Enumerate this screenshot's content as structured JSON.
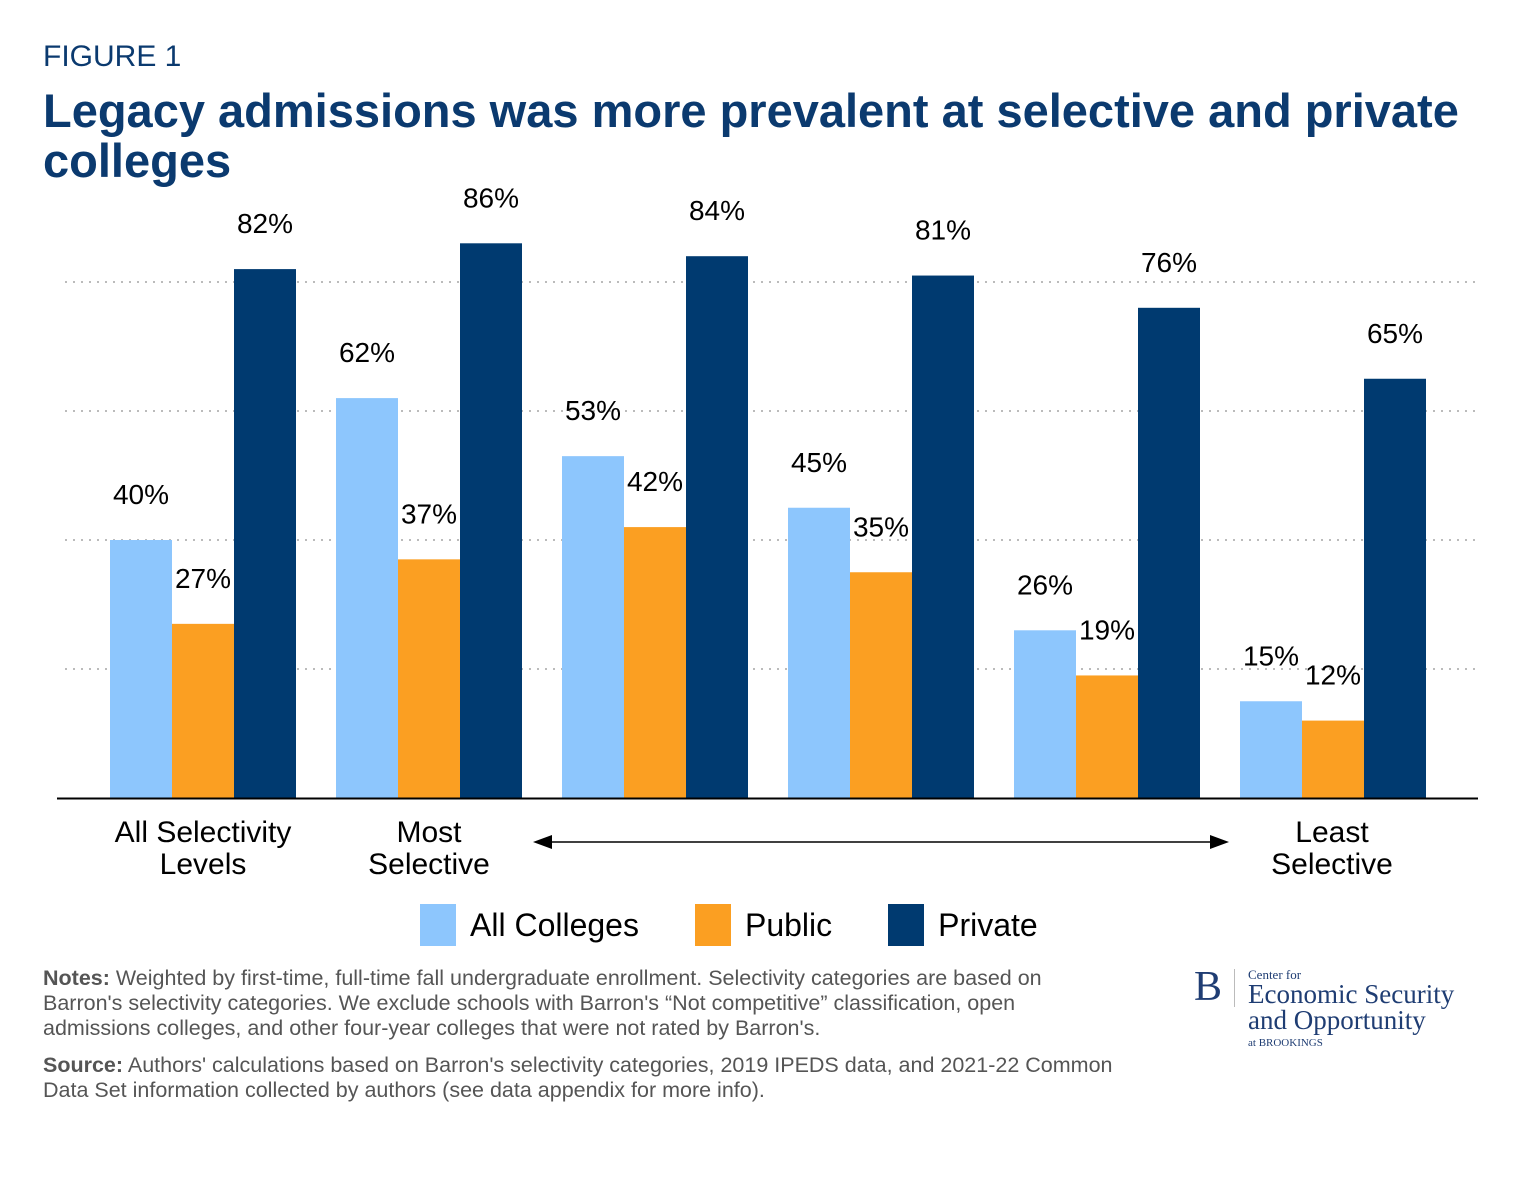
{
  "figure_label": "FIGURE 1",
  "title": "Legacy admissions was more prevalent at selective and private colleges",
  "chart_data": {
    "type": "bar",
    "categories": [
      "All Selectivity Levels",
      "Most Selective",
      "",
      "",
      "",
      "Least Selective"
    ],
    "series": [
      {
        "name": "All Colleges",
        "color": "#8dc6fd",
        "values": [
          40,
          62,
          53,
          45,
          26,
          15
        ]
      },
      {
        "name": "Public",
        "color": "#fb9f22",
        "values": [
          27,
          37,
          42,
          35,
          19,
          12
        ]
      },
      {
        "name": "Private",
        "color": "#003a70",
        "values": [
          82,
          86,
          84,
          81,
          76,
          65
        ]
      }
    ],
    "value_format": "percent",
    "ylim": [
      0,
      100
    ],
    "gridlines": [
      20,
      40,
      60,
      80
    ],
    "grid": true,
    "legend": "bottom",
    "annotation": "double-headed arrow from Most Selective to Least Selective"
  },
  "category_labels": {
    "all_1": "All Selectivity",
    "all_2": "Levels",
    "most_1": "Most",
    "most_2": "Selective",
    "least_1": "Least",
    "least_2": "Selective"
  },
  "notes": {
    "notes_label": "Notes:",
    "notes_text": "Weighted by first-time, full-time fall undergraduate enrollment. Selectivity categories are based on Barron's selectivity categories. We exclude schools with Barron's “Not competitive” classification, open admissions colleges, and other four-year colleges that were not rated by Barron's.",
    "source_label": "Source:",
    "source_text": "Authors' calculations based on Barron's selectivity categories, 2019 IPEDS data, and 2021-22 Common Data Set information collected by authors (see data appendix for more info)."
  },
  "logo": {
    "mark": "B",
    "line1": "Center for",
    "line2": "Economic Security",
    "line3": "and Opportunity",
    "line4": "at BROOKINGS"
  }
}
